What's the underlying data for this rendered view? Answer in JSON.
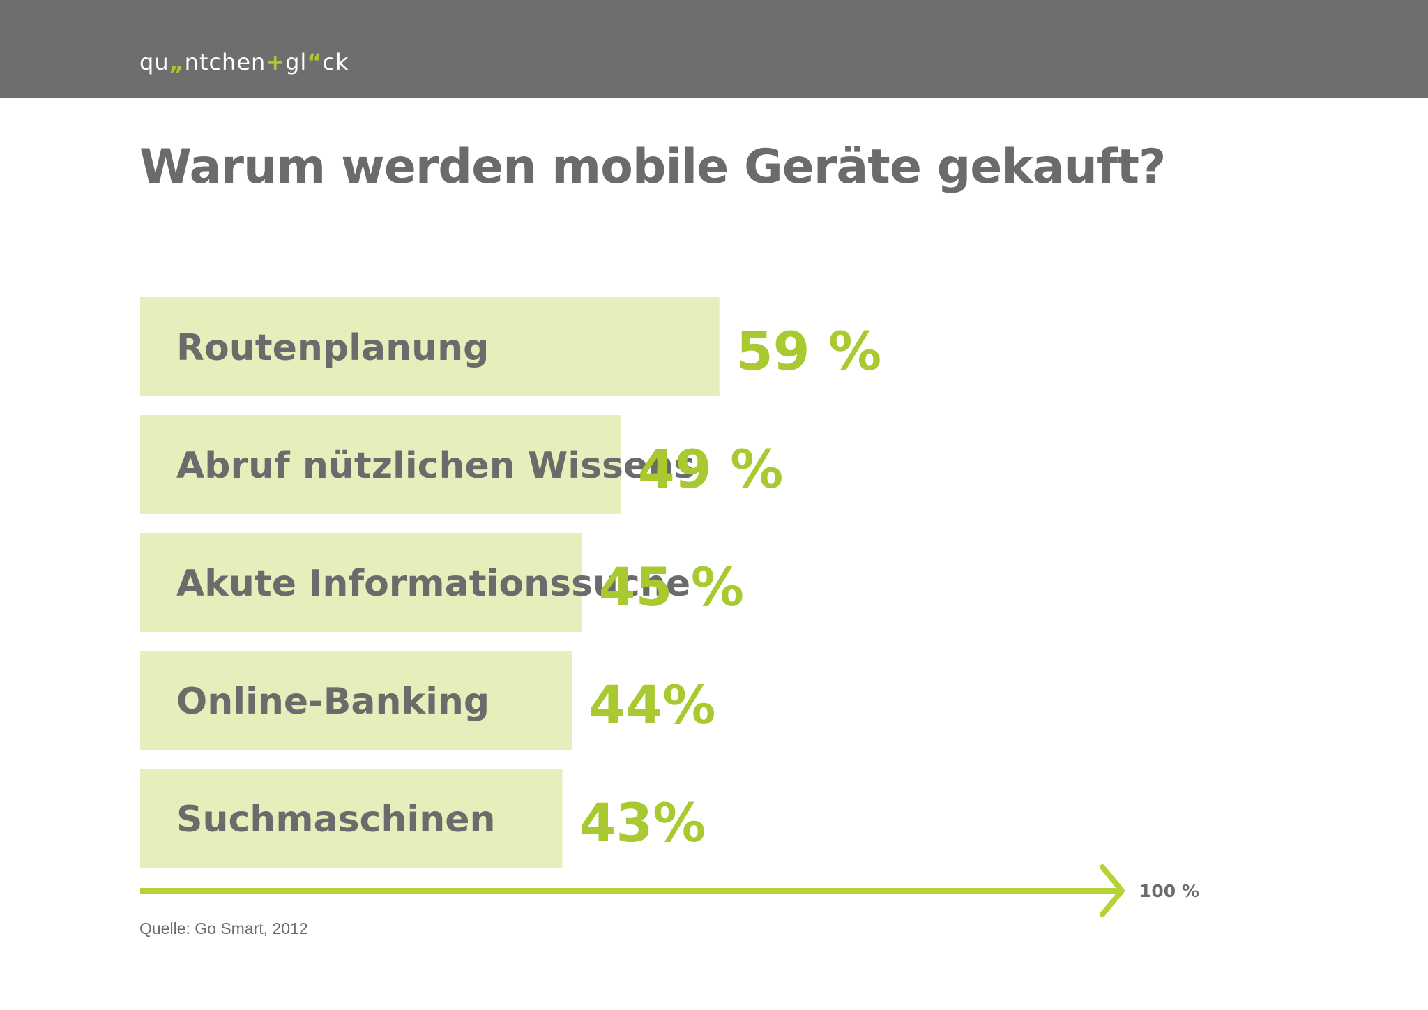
{
  "header": {
    "logo_parts": [
      "qu",
      "„",
      "ntchen",
      "+",
      "gl",
      "“",
      "ck"
    ],
    "background": "#6e6e6e",
    "accent": "#a8c92f"
  },
  "title": "Warum werden mobile Geräte gekauft?",
  "source": "Quelle: Go Smart, 2012",
  "chart_data": {
    "type": "bar",
    "orientation": "horizontal",
    "categories": [
      "Routenplanung",
      "Abruf nützlichen Wissens",
      "Akute Informationssuche",
      "Online-Banking",
      "Suchmaschinen"
    ],
    "values": [
      59,
      49,
      45,
      44,
      43
    ],
    "value_labels": [
      "59 %",
      "49 %",
      "45 %",
      "44%",
      "43%"
    ],
    "xlim": [
      0,
      100
    ],
    "axis_end_label": "100 %",
    "bar_color": "#e4efbb",
    "value_color": "#a8c92f",
    "axis_color": "#b5d334",
    "category_text_color": "#6b6b6b"
  }
}
